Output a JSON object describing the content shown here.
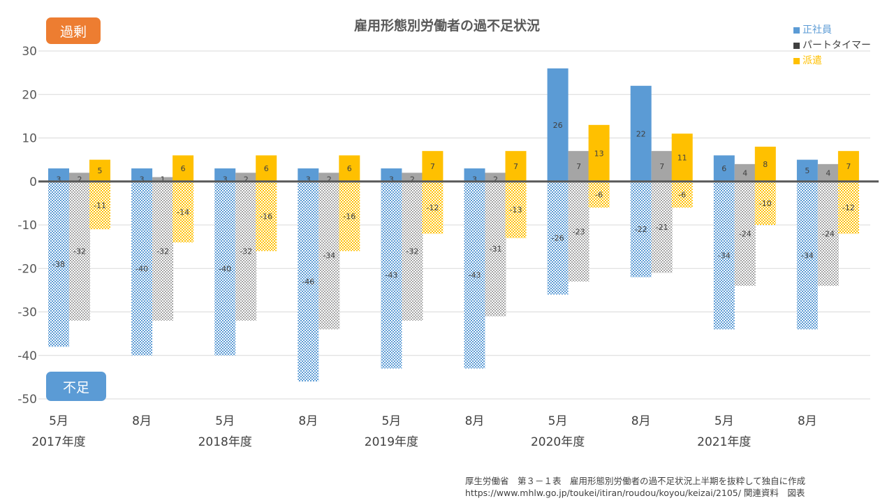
{
  "badges": {
    "surplus": "過剰",
    "shortage": "不足"
  },
  "colors": {
    "seishain": "#5b9bd5",
    "part": "#a5a5a5",
    "haken": "#ffc000",
    "badge_surplus": "#ed7d31",
    "badge_shortage": "#5b9bd5",
    "zero_line": "#595959",
    "grid": "#d9d9d9"
  },
  "legend": [
    {
      "label": "正社員",
      "color": "#5b9bd5",
      "text_color": "#5b9bd5"
    },
    {
      "label": "パートタイマー",
      "color": "#404040",
      "text_color": "#404040"
    },
    {
      "label": "派遣",
      "color": "#ffc000",
      "text_color": "#ffc000"
    }
  ],
  "source": {
    "line1": "厚生労働省　第３－１表　雇用形態別労働者の過不足状況上半期を抜粋して独自に作成",
    "line2": "https://www.mhlw.go.jp/toukei/itiran/roudou/koyou/keizai/2105/ 関連資料　図表"
  },
  "chart_data": {
    "type": "bar",
    "title": "雇用形態別労働者の過不足状況",
    "categories": [
      "5月",
      "8月",
      "5月",
      "8月",
      "5月",
      "8月",
      "5月",
      "8月",
      "5月",
      "8月"
    ],
    "year_labels": [
      "2017年度",
      "2018年度",
      "2019年度",
      "2020年度",
      "2021年度"
    ],
    "ylim": [
      -50,
      30
    ],
    "yticks": [
      30,
      20,
      10,
      0,
      -10,
      -20,
      -30,
      -40,
      -50
    ],
    "grid": true,
    "legend_position": "top-right",
    "series": [
      {
        "name": "正社員",
        "surplus": [
          3,
          3,
          3,
          3,
          3,
          3,
          26,
          22,
          6,
          5
        ],
        "shortage": [
          -38,
          -40,
          -40,
          -46,
          -43,
          -43,
          -26,
          -22,
          -34,
          -34
        ]
      },
      {
        "name": "パートタイマー",
        "surplus": [
          2,
          1,
          2,
          2,
          2,
          2,
          7,
          7,
          4,
          4
        ],
        "shortage": [
          -32,
          -32,
          -32,
          -34,
          -32,
          -31,
          -23,
          -21,
          -24,
          -24
        ]
      },
      {
        "name": "派遣",
        "surplus": [
          5,
          6,
          6,
          6,
          7,
          7,
          13,
          11,
          8,
          7
        ],
        "shortage": [
          -11,
          -14,
          -16,
          -16,
          -12,
          -13,
          -6,
          -6,
          -10,
          -12
        ]
      }
    ]
  }
}
